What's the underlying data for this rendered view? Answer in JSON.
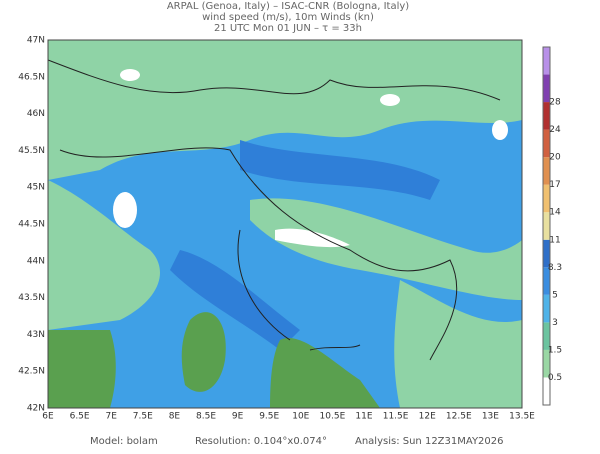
{
  "header": {
    "line1": "ARPAL (Genoa, Italy)  –  ISAC-CNR (Bologna, Italy)",
    "line2": "wind speed (m/s), 10m Winds (kn)",
    "line3": "21 UTC Mon 01 JUN  –  τ = 33h"
  },
  "map": {
    "lat_labels": [
      "47N",
      "46.5N",
      "46N",
      "45.5N",
      "45N",
      "44.5N",
      "44N",
      "43.5N",
      "43N",
      "42.5N",
      "42N"
    ],
    "lon_labels": [
      "6E",
      "6.5E",
      "7E",
      "7.5E",
      "8E",
      "8.5E",
      "9E",
      "9.5E",
      "10E",
      "10.5E",
      "11E",
      "11.5E",
      "12E",
      "12.5E",
      "13E",
      "13.5E"
    ]
  },
  "colorbar": {
    "labels": [
      "28",
      "24",
      "20",
      "17",
      "14",
      "11",
      "8.3",
      "5",
      "3",
      "1.5",
      "0.5"
    ]
  },
  "footer": {
    "model": "Model: bolam",
    "resolution": "Resolution: 0.104°x0.074°",
    "analysis": "Analysis: Sun 12Z31MAY2026"
  }
}
